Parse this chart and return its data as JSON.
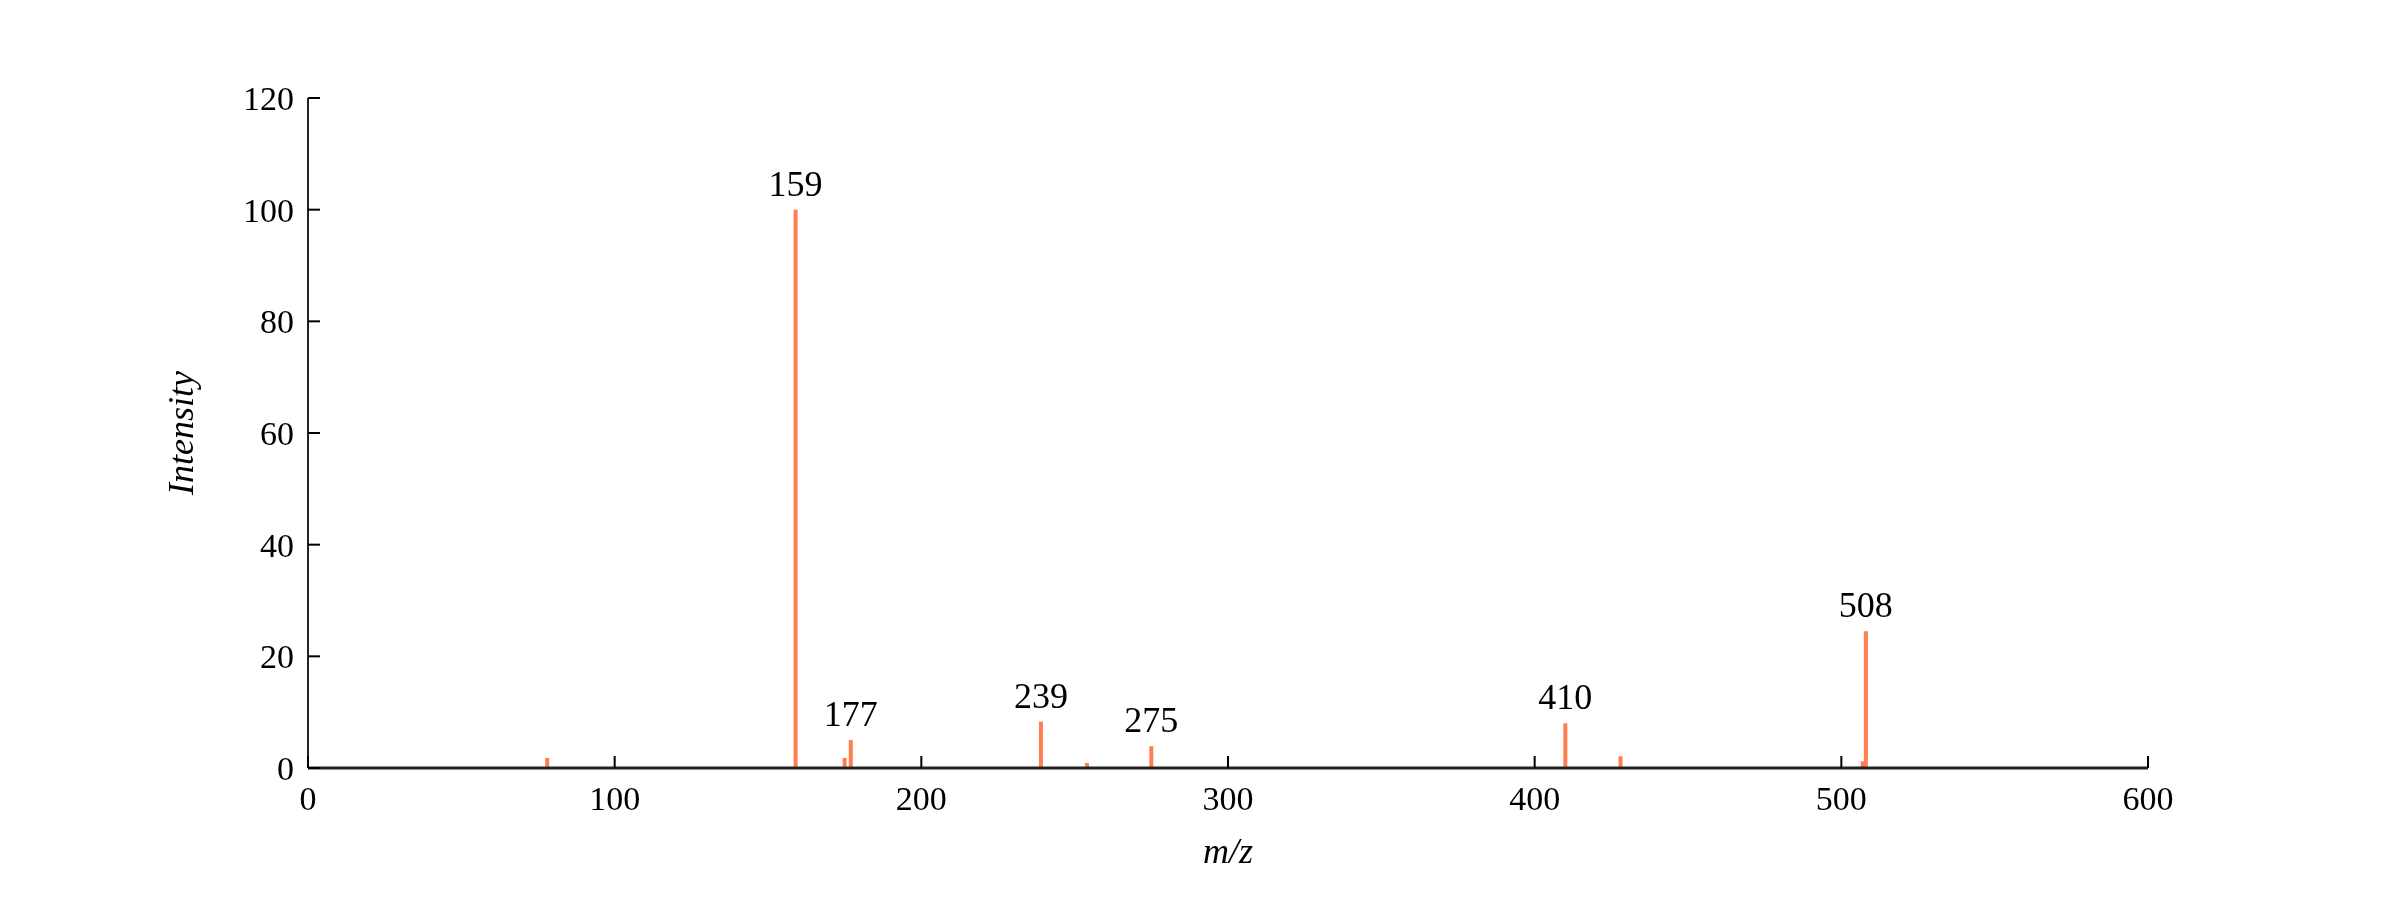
{
  "chart_data": {
    "type": "bar",
    "xlabel": "m/z",
    "ylabel": "Intensity",
    "x": [
      78,
      159,
      175,
      177,
      239,
      254,
      275,
      410,
      428,
      507,
      508
    ],
    "values": [
      1.8,
      100,
      1.8,
      5,
      8.3,
      0.9,
      3.9,
      8,
      2.1,
      1.2,
      24.5
    ],
    "color": "#ff7f50",
    "xlim": [
      0,
      600
    ],
    "xticks": [
      0,
      100,
      200,
      300,
      400,
      500,
      600
    ],
    "ylim": [
      0,
      120
    ],
    "yticks": [
      0,
      20,
      40,
      60,
      80,
      100,
      120
    ],
    "annotations": [
      {
        "text": "159",
        "x": 159,
        "y": 100
      },
      {
        "text": "177",
        "x": 177,
        "y": 5
      },
      {
        "text": "239",
        "x": 239,
        "y": 8.3
      },
      {
        "text": "275",
        "x": 275,
        "y": 3.9
      },
      {
        "text": "410",
        "x": 410,
        "y": 8
      },
      {
        "text": "508",
        "x": 508,
        "y": 24.5
      }
    ]
  }
}
